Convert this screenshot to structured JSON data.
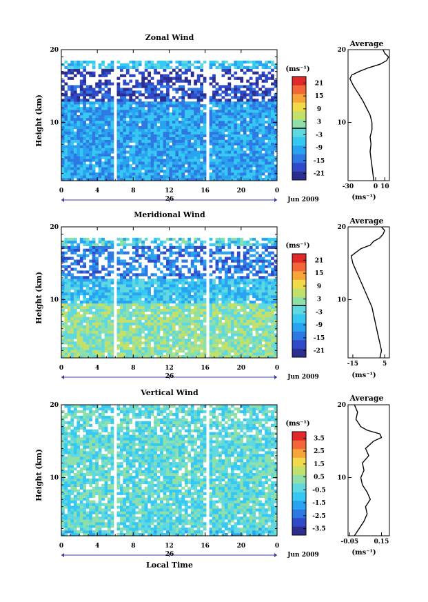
{
  "figure": {
    "date_label": "Jun 2009",
    "x_axis_label": "Local Time",
    "day_label": "26",
    "y_axis_label": "Height (km)",
    "unit_label": "(ms⁻¹)",
    "average_title": "Average",
    "average_xunit": "(ms⁻¹)"
  },
  "colormap": [
    "#2b2e8f",
    "#2f49c8",
    "#2e78e4",
    "#29a3f0",
    "#36c7f2",
    "#5fd8df",
    "#8ee0a8",
    "#c2e06a",
    "#f2d94a",
    "#f7a43a",
    "#f2663a",
    "#e02a2a"
  ],
  "chart_data": [
    {
      "type": "heatmap",
      "title": "Zonal Wind",
      "ylabel": "Height (km)",
      "xlabel": "",
      "x_ticks": [
        "0",
        "4",
        "8",
        "12",
        "16",
        "20",
        "0"
      ],
      "y_ticks": [
        "10",
        "20"
      ],
      "xlim": [
        0,
        24
      ],
      "ylim": [
        2,
        20
      ],
      "data_gaps_hours": [
        [
          5.7,
          6.2
        ],
        [
          16.0,
          16.5
        ]
      ],
      "colorbar": {
        "ticks": [
          "21",
          "15",
          "9",
          "3",
          "-3",
          "-9",
          "-15",
          "-21"
        ],
        "range": [
          -24,
          24
        ],
        "zero_line": true
      },
      "average_profile": {
        "title": "Average",
        "x_ticks": [
          "-30",
          "0",
          "10"
        ],
        "xlim": [
          -30,
          15
        ],
        "y_ticks": [
          "10",
          "20"
        ],
        "height_km": [
          2,
          3,
          4,
          5,
          6,
          7,
          8,
          9,
          10,
          11,
          12,
          13,
          14,
          15,
          16,
          16.5,
          17,
          17.5,
          18,
          18.5,
          19,
          19.5,
          20
        ],
        "wind": [
          -2,
          -3,
          -4,
          -5,
          -6,
          -5,
          -6,
          -4,
          -4,
          -6,
          -10,
          -14,
          -19,
          -24,
          -28,
          -26,
          -18,
          -8,
          5,
          12,
          14,
          10,
          8
        ]
      }
    },
    {
      "type": "heatmap",
      "title": "Meridional Wind",
      "ylabel": "Height (km)",
      "xlabel": "",
      "x_ticks": [
        "0",
        "4",
        "8",
        "12",
        "16",
        "20",
        "0"
      ],
      "y_ticks": [
        "10",
        "20"
      ],
      "xlim": [
        0,
        24
      ],
      "ylim": [
        2,
        20
      ],
      "data_gaps_hours": [
        [
          5.7,
          6.2
        ],
        [
          16.0,
          16.5
        ]
      ],
      "colorbar": {
        "ticks": [
          "21",
          "15",
          "9",
          "3",
          "-3",
          "-9",
          "-15",
          "-21"
        ],
        "range": [
          -24,
          24
        ],
        "zero_line": true
      },
      "average_profile": {
        "title": "Average",
        "x_ticks": [
          "-15",
          "5"
        ],
        "xlim": [
          -18,
          8
        ],
        "y_ticks": [
          "10",
          "20"
        ],
        "height_km": [
          2,
          3,
          4,
          5,
          6,
          7,
          8,
          9,
          10,
          11,
          12,
          13,
          14,
          15,
          16,
          17,
          17.5,
          18,
          18.5,
          19,
          19.5,
          20
        ],
        "wind": [
          2,
          3,
          2,
          1,
          0,
          -1,
          -2,
          -3,
          -5,
          -7,
          -9,
          -11,
          -13,
          -15,
          -16,
          -10,
          -4,
          -2,
          2,
          4,
          5,
          3
        ]
      }
    },
    {
      "type": "heatmap",
      "title": "Vertical Wind",
      "ylabel": "Height (km)",
      "xlabel": "Local Time",
      "x_ticks": [
        "0",
        "4",
        "8",
        "12",
        "16",
        "20",
        "0"
      ],
      "y_ticks": [
        "10",
        "20"
      ],
      "xlim": [
        0,
        24
      ],
      "ylim": [
        2,
        20
      ],
      "data_gaps_hours": [
        [
          5.7,
          6.2
        ],
        [
          16.0,
          16.5
        ]
      ],
      "colorbar": {
        "ticks": [
          "3.5",
          "2.5",
          "1.5",
          "0.5",
          "-0.5",
          "-1.5",
          "-2.5",
          "-3.5"
        ],
        "range": [
          -4,
          4
        ],
        "zero_line": false
      },
      "average_profile": {
        "title": "Average",
        "x_ticks": [
          "-0.05",
          "0.15"
        ],
        "xlim": [
          -0.06,
          0.2
        ],
        "y_ticks": [
          "10",
          "20"
        ],
        "height_km": [
          2,
          3,
          4,
          5,
          6,
          7,
          8,
          9,
          10,
          11,
          12,
          13,
          14,
          15,
          15.5,
          16,
          16.5,
          17,
          18,
          19,
          20
        ],
        "wind": [
          -0.02,
          0.01,
          0.04,
          0.06,
          0.05,
          0.08,
          0.06,
          0.03,
          0.02,
          0.04,
          0.03,
          0.07,
          0.05,
          0.1,
          0.15,
          0.14,
          0.06,
          0.02,
          -0.01,
          0.0,
          -0.02
        ]
      }
    }
  ]
}
